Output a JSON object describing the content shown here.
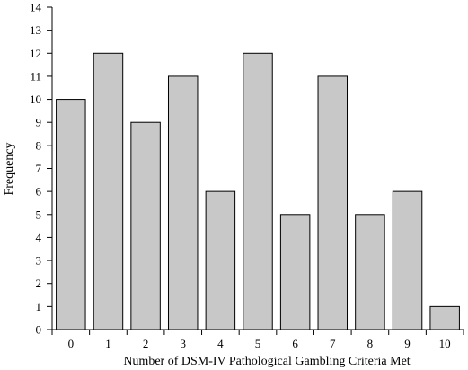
{
  "chart_data": {
    "type": "bar",
    "categories": [
      "0",
      "1",
      "2",
      "3",
      "4",
      "5",
      "6",
      "7",
      "8",
      "9",
      "10"
    ],
    "values": [
      10,
      12,
      9,
      11,
      6,
      12,
      5,
      11,
      5,
      6,
      1
    ],
    "xlabel": "Number of DSM-IV Pathological Gambling Criteria Met",
    "ylabel": "Frequency",
    "ylim": [
      0,
      14
    ],
    "yticks": [
      "0",
      "1",
      "2",
      "3",
      "4",
      "5",
      "6",
      "7",
      "8",
      "9",
      "10",
      "11",
      "12",
      "13",
      "14"
    ],
    "grid": false,
    "bar_color": "#c8c8c8"
  }
}
